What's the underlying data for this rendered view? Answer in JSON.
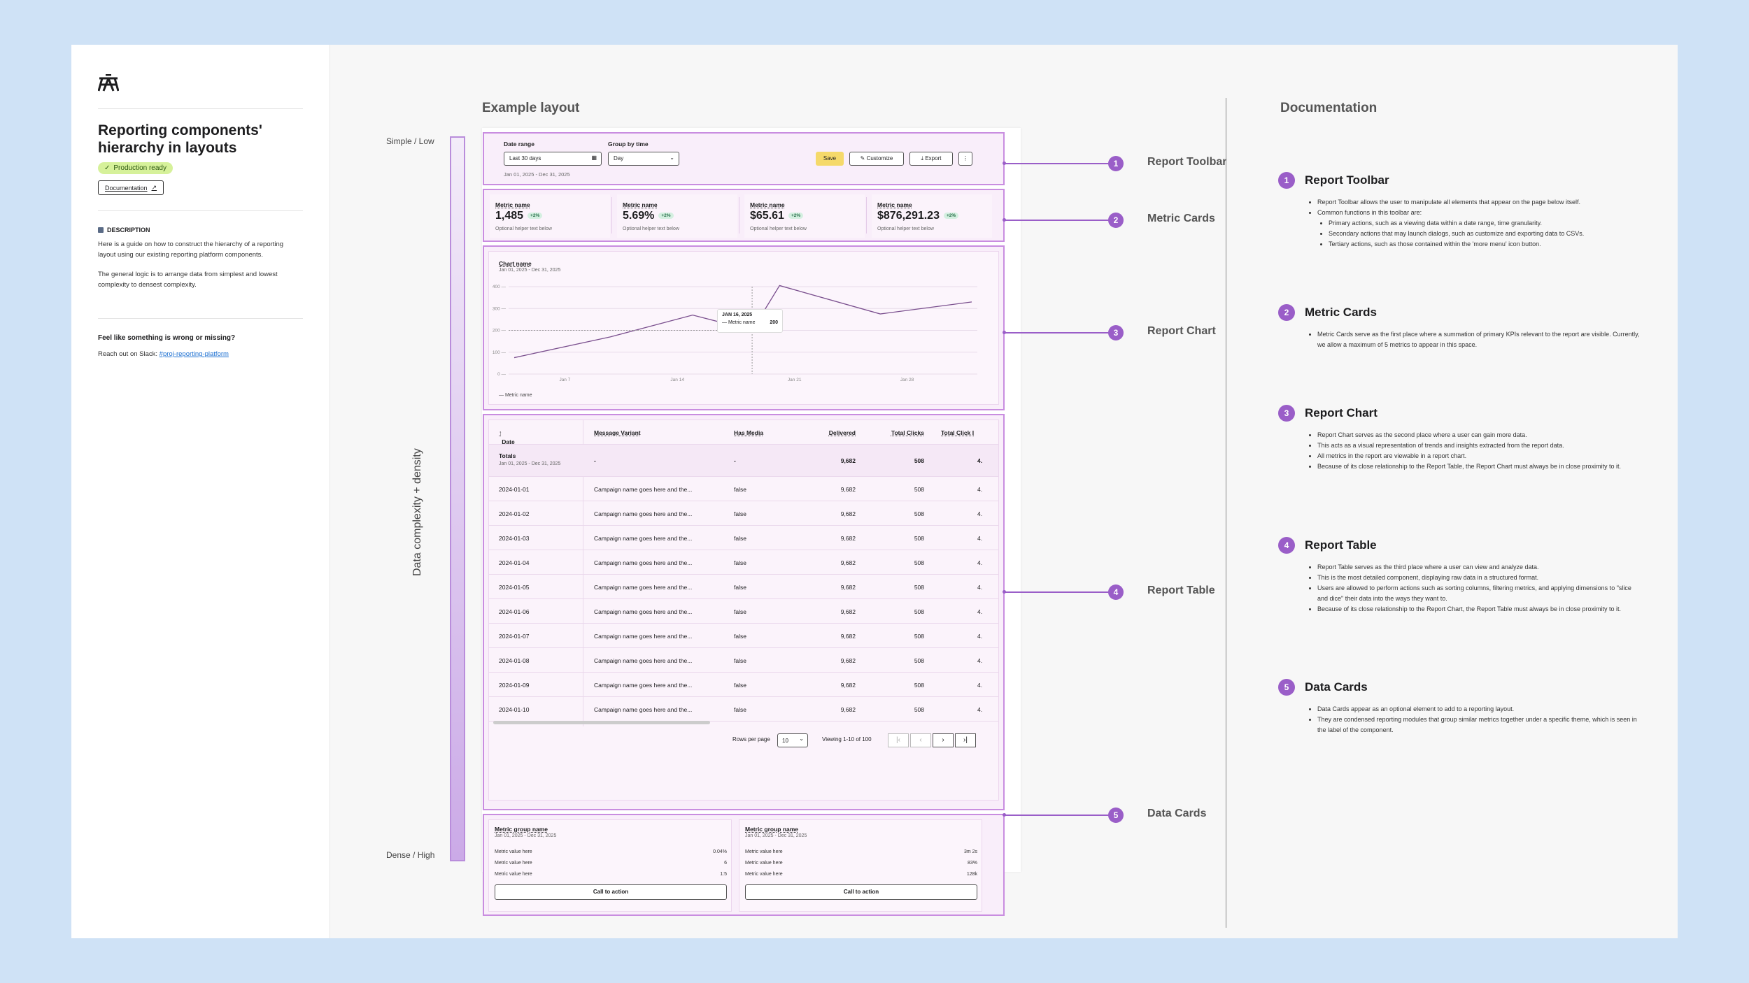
{
  "sidebar": {
    "title": "Reporting components' hierarchy in layouts",
    "badge": "Production ready",
    "doc_button": "Documentation",
    "description_heading": "DESCRIPTION",
    "description_p1": "Here is a guide on how to construct the hierarchy of a reporting layout using our existing reporting platform components.",
    "description_p2": "The general logic is to arrange data from simplest and lowest complexity to densest complexity.",
    "feedback_heading": "Feel like something is wrong or missing?",
    "feedback_text": "Reach out on Slack: ",
    "slack_link": "#proj-reporting-platform"
  },
  "example": {
    "heading": "Example layout",
    "axis_top": "Simple / Low",
    "axis_bottom": "Dense / High",
    "axis_label": "Data complexity + density"
  },
  "toolbar": {
    "date_range_label": "Date range",
    "date_range_value": "Last 30 days",
    "group_label": "Group by time",
    "group_value": "Day",
    "date_sub": "Jan 01, 2025 - Dec 31, 2025",
    "save": "Save",
    "customize": "Customize",
    "export": "Export"
  },
  "metrics": [
    {
      "name": "Metric name",
      "value": "1,485",
      "chip": "+2%",
      "help": "Optional helper text below"
    },
    {
      "name": "Metric name",
      "value": "5.69%",
      "chip": "+2%",
      "help": "Optional helper text below"
    },
    {
      "name": "Metric name",
      "value": "$65.61",
      "chip": "+2%",
      "help": "Optional helper text below"
    },
    {
      "name": "Metric name",
      "value": "$876,291.23",
      "chip": "+2%",
      "help": "Optional helper text below"
    }
  ],
  "chart": {
    "title": "Chart name",
    "subtitle": "Jan 01, 2025 - Dec 31, 2025",
    "tooltip_date": "JAN 16, 2025",
    "tooltip_label": "Metric name",
    "tooltip_value": "200",
    "legend": "Metric name"
  },
  "chart_data": {
    "type": "line",
    "title": "Chart name",
    "x": [
      "Jan 1",
      "Jan 7",
      "Jan 12",
      "Jan 16",
      "Jan 19",
      "Jan 26",
      "Jan 30"
    ],
    "y_ticks": [
      0,
      100,
      200,
      300,
      400
    ],
    "x_ticks": [
      "Jan 7",
      "Jan 14",
      "Jan 21",
      "Jan 28"
    ],
    "ylim": [
      0,
      400
    ],
    "series": [
      {
        "name": "Metric name",
        "values": [
          75,
          170,
          270,
          200,
          405,
          275,
          330
        ]
      }
    ]
  },
  "table": {
    "headers": [
      "Date",
      "Message Variant",
      "Has Media",
      "Delivered",
      "Total Clicks",
      "Total Click I"
    ],
    "totals": {
      "label": "Totals",
      "sub": "Jan 01, 2025 - Dec 31, 2025",
      "variant": "-",
      "media": "-",
      "delivered": "9,682",
      "clicks": "508",
      "rate": "4."
    },
    "rows": [
      {
        "date": "2024-01-01",
        "variant": "Campaign name goes here and the...",
        "media": "false",
        "delivered": "9,682",
        "clicks": "508",
        "rate": "4."
      },
      {
        "date": "2024-01-02",
        "variant": "Campaign name goes here and the...",
        "media": "false",
        "delivered": "9,682",
        "clicks": "508",
        "rate": "4."
      },
      {
        "date": "2024-01-03",
        "variant": "Campaign name goes here and the...",
        "media": "false",
        "delivered": "9,682",
        "clicks": "508",
        "rate": "4."
      },
      {
        "date": "2024-01-04",
        "variant": "Campaign name goes here and the...",
        "media": "false",
        "delivered": "9,682",
        "clicks": "508",
        "rate": "4."
      },
      {
        "date": "2024-01-05",
        "variant": "Campaign name goes here and the...",
        "media": "false",
        "delivered": "9,682",
        "clicks": "508",
        "rate": "4."
      },
      {
        "date": "2024-01-06",
        "variant": "Campaign name goes here and the...",
        "media": "false",
        "delivered": "9,682",
        "clicks": "508",
        "rate": "4."
      },
      {
        "date": "2024-01-07",
        "variant": "Campaign name goes here and the...",
        "media": "false",
        "delivered": "9,682",
        "clicks": "508",
        "rate": "4."
      },
      {
        "date": "2024-01-08",
        "variant": "Campaign name goes here and the...",
        "media": "false",
        "delivered": "9,682",
        "clicks": "508",
        "rate": "4."
      },
      {
        "date": "2024-01-09",
        "variant": "Campaign name goes here and the...",
        "media": "false",
        "delivered": "9,682",
        "clicks": "508",
        "rate": "4."
      },
      {
        "date": "2024-01-10",
        "variant": "Campaign name goes here and the...",
        "media": "false",
        "delivered": "9,682",
        "clicks": "508",
        "rate": "4."
      }
    ],
    "rows_per_page_label": "Rows per page",
    "rows_per_page": "10",
    "viewing": "Viewing 1-10 of 100"
  },
  "data_cards": [
    {
      "title": "Metric group name",
      "sub": "Jan 01, 2025 - Dec 31, 2025",
      "rows": [
        {
          "label": "Metric value here",
          "value": "0.04%"
        },
        {
          "label": "Metric value here",
          "value": "6"
        },
        {
          "label": "Metric value here",
          "value": "1:5"
        }
      ],
      "cta": "Call to action"
    },
    {
      "title": "Metric group name",
      "sub": "Jan 01, 2025 - Dec 31, 2025",
      "rows": [
        {
          "label": "Metric value here",
          "value": "3m 2s"
        },
        {
          "label": "Metric value here",
          "value": "83%"
        },
        {
          "label": "Metric value here",
          "value": "128k"
        }
      ],
      "cta": "Call to action"
    }
  ],
  "callouts": [
    {
      "num": "1",
      "label": "Report Toolbar"
    },
    {
      "num": "2",
      "label": "Metric Cards"
    },
    {
      "num": "3",
      "label": "Report Chart"
    },
    {
      "num": "4",
      "label": "Report Table"
    },
    {
      "num": "5",
      "label": "Data Cards"
    }
  ],
  "documentation": {
    "heading": "Documentation",
    "sections": [
      {
        "num": "1",
        "title": "Report Toolbar",
        "b1": "Report Toolbar allows the user to manipulate all elements that appear on the page below itself.",
        "b2": "Common functions in this toolbar are:",
        "s1": "Primary actions, such as a viewing data within a date range,  time granularity.",
        "s2": "Secondary actions that may launch dialogs, such as customize and exporting data to CSVs.",
        "s3": "Tertiary actions, such as those contained within the 'more menu' icon button."
      },
      {
        "num": "2",
        "title": "Metric Cards",
        "b1": "Metric Cards serve as the first place where a summation of primary KPIs relevant to the report are visible. Currently, we allow a maximum of 5 metrics to appear in this space."
      },
      {
        "num": "3",
        "title": "Report Chart",
        "b1": "Report Chart serves as the second place where a user can gain more data.",
        "b2": "This acts as a visual representation of trends and insights extracted from the report data.",
        "b3": "All metrics in the report are viewable in a report chart.",
        "b4": "Because of its close relationship to the Report Table, the Report Chart must always be in close proximity to it."
      },
      {
        "num": "4",
        "title": "Report Table",
        "b1": "Report Table serves as the third place where a user can view and analyze data.",
        "b2": "This is the most detailed component, displaying raw data in a structured format.",
        "b3": "Users are allowed to perform actions such as sorting columns, filtering metrics, and applying dimensions to \"slice and dice\" their data into the ways they want to.",
        "b4": "Because of its close relationship to the Report Chart, the Report Table must always be in close proximity to it."
      },
      {
        "num": "5",
        "title": "Data Cards",
        "b1": "Data Cards appear as an optional element to add to a reporting layout.",
        "b2": "They are condensed reporting modules that group similar metrics together under a specific theme, which is seen in the label of the component."
      }
    ]
  },
  "colors": {
    "accent": "#9a5ec8",
    "band_border": "#c98de0",
    "band_fill": "#f9eefa",
    "badge": "#d6f19a",
    "save": "#f5d96a"
  }
}
